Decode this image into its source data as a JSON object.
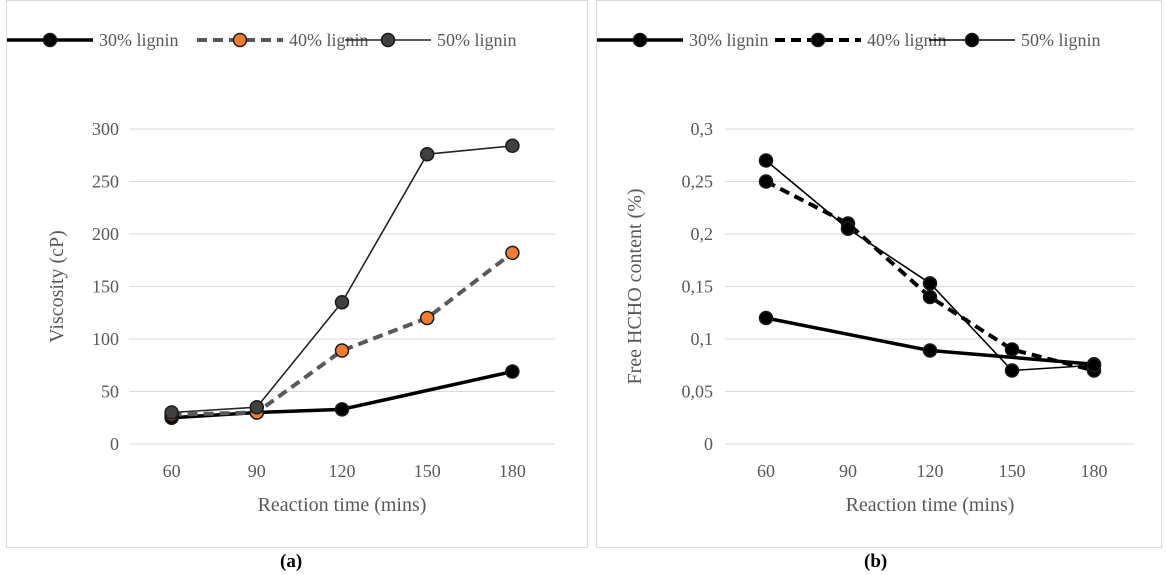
{
  "captions": [
    "(a)",
    "(b)"
  ],
  "chart_data": [
    {
      "type": "line",
      "ylabel": "Viscosity (cP)",
      "xlabel": "Reaction time (mins)",
      "categories": [
        "60",
        "90",
        "120",
        "150",
        "180"
      ],
      "ylim": [
        0,
        300
      ],
      "yticks": [
        "0",
        "50",
        "100",
        "150",
        "200",
        "250",
        "300"
      ],
      "grid": true,
      "legend_position": "top",
      "series": [
        {
          "name": "30% lignin",
          "values": [
            25,
            30,
            33,
            null,
            69
          ],
          "color": "#000000",
          "dash": "solid",
          "marker_fill": "#000000"
        },
        {
          "name": "40% lignin",
          "values": [
            28,
            30,
            89,
            120,
            182
          ],
          "color": "#595959",
          "dash": "dashed",
          "marker_fill": "#ed7d31"
        },
        {
          "name": "50% lignin",
          "values": [
            30,
            35,
            135,
            276,
            284
          ],
          "color": "#262626",
          "dash": "thin",
          "marker_fill": "#404040"
        }
      ]
    },
    {
      "type": "line",
      "ylabel": "Free HCHO content (%)",
      "xlabel": "Reaction time (mins)",
      "categories": [
        "60",
        "90",
        "120",
        "150",
        "180"
      ],
      "ylim": [
        0,
        0.3
      ],
      "yticks": [
        "0",
        "0,05",
        "0,1",
        "0,15",
        "0,2",
        "0,25",
        "0,3"
      ],
      "grid": true,
      "legend_position": "top",
      "series": [
        {
          "name": "30% lignin",
          "values": [
            0.12,
            null,
            0.089,
            null,
            0.076
          ],
          "color": "#000000",
          "dash": "solid",
          "marker_fill": "#000000"
        },
        {
          "name": "40% lignin",
          "values": [
            0.25,
            0.21,
            0.14,
            0.09,
            0.07
          ],
          "color": "#000000",
          "dash": "dashed",
          "marker_fill": "#000000"
        },
        {
          "name": "50% lignin",
          "values": [
            0.27,
            0.205,
            0.153,
            0.07,
            0.075
          ],
          "color": "#000000",
          "dash": "thin",
          "marker_fill": "#000000"
        }
      ]
    }
  ]
}
